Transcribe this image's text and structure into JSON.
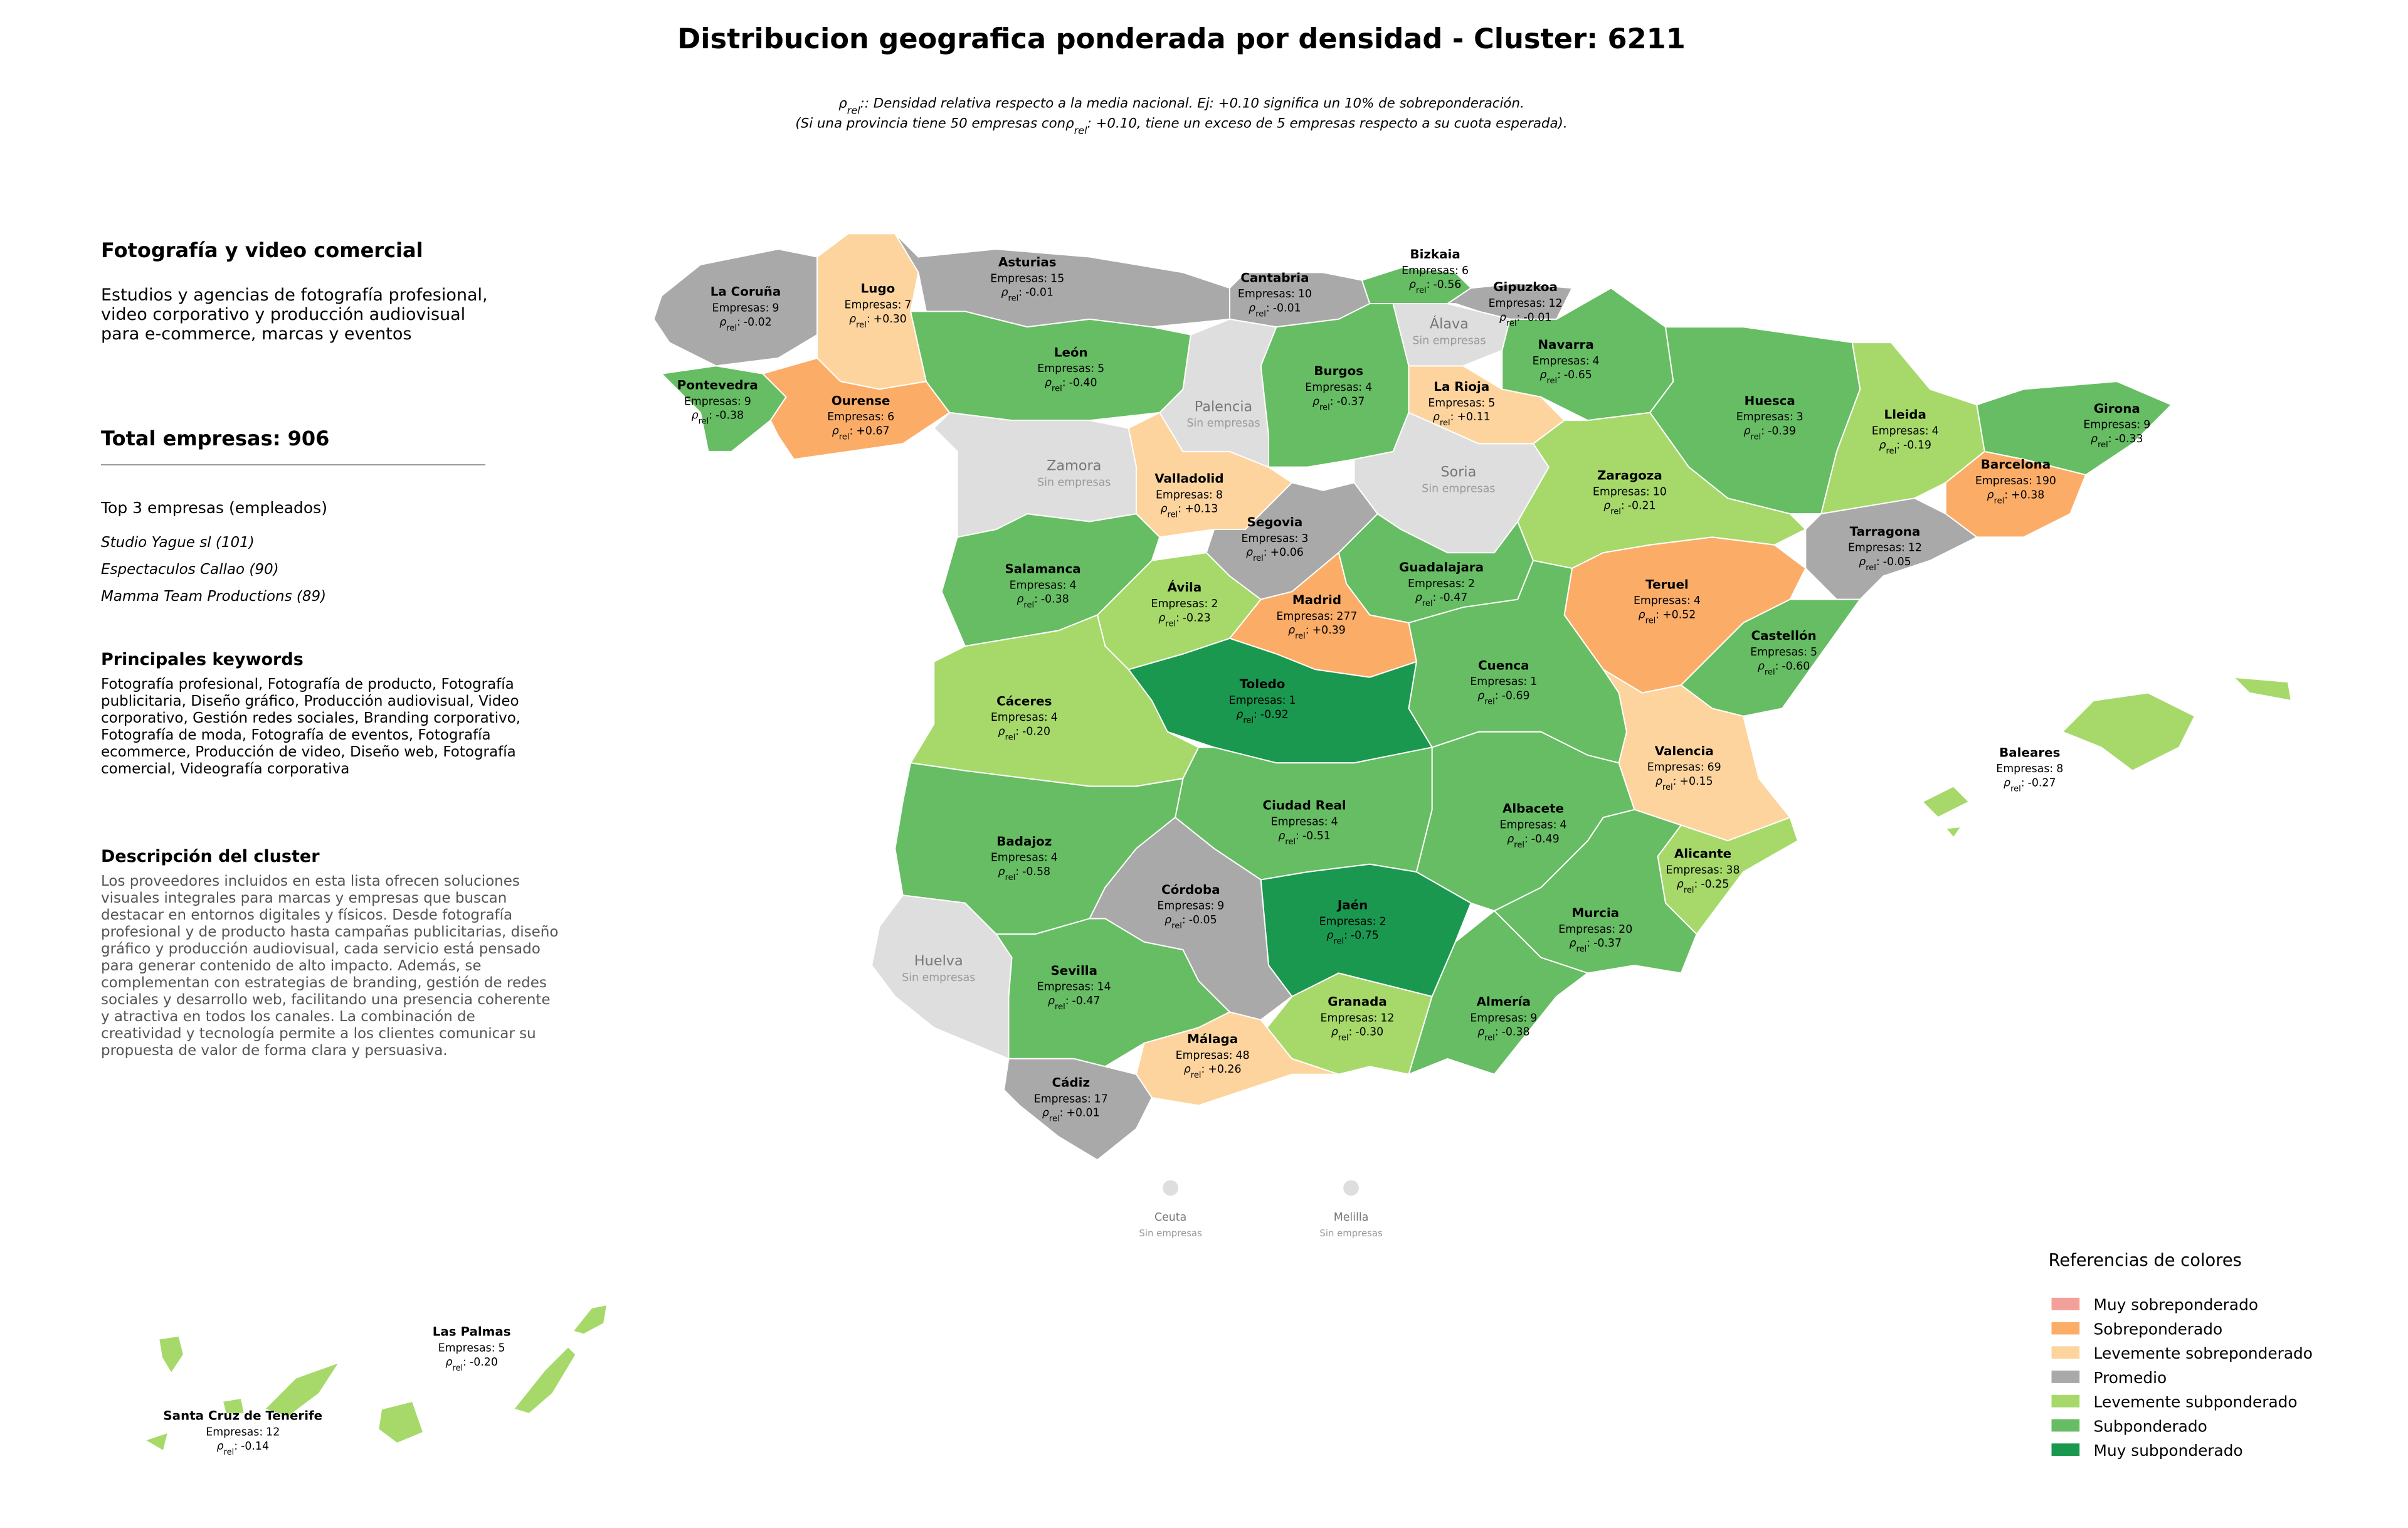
{
  "header": {
    "title": "Distribucion geografica ponderada por densidad - Cluster: 6211",
    "subtitle": {
      "line1": ": Densidad relativa respecto a la media nacional. Ej: +0.10 significa un 10% de sobreponderación.",
      "line2_start": "(Si una provincia tiene 50 empresas con",
      "line2_end": " +0.10, tiene un exceso de 5 empresas respecto a su cuota esperada)."
    }
  },
  "labels": {
    "companies": "Empresas:",
    "rho_symbol": "ρ",
    "rho_sub": "rel",
    "rho_sep": ":",
    "no_data": "Sin empresas"
  },
  "sidebar": {
    "title": "Fotografía y video comercial",
    "summary": "Estudios y agencias de fotografía profesional, video corporativo y producción audiovisual para e-commerce, marcas y eventos",
    "total_label": "Total empresas:",
    "total": 906,
    "top_title": "Top 3 empresas (empleados)",
    "top": [
      "Studio Yague sl (101)",
      "Espectaculos Callao (90)",
      "Mamma Team Productions (89)"
    ],
    "keywords_title": "Principales keywords",
    "keywords": "Fotografía profesional, Fotografía de producto, Fotografía publicitaria, Diseño gráfico, Producción audiovisual, Video corporativo, Gestión redes sociales, Branding corporativo, Fotografía de moda, Fotografía de eventos, Fotografía ecommerce, Producción de video, Diseño web, Fotografía comercial, Videografía corporativa",
    "description_title": "Descripción del cluster",
    "description": "Los proveedores incluidos en esta lista ofrecen soluciones visuales integrales para marcas y empresas que buscan destacar en entornos digitales y físicos. Desde fotografía profesional y de producto hasta campañas publicitarias, diseño gráfico y producción audiovisual, cada servicio está pensado para generar contenido de alto impacto. Además, se complementan con estrategias de branding, gestión de redes sociales y desarrollo web, facilitando una presencia coherente y atractiva en todos los canales. La combinación de creatividad y tecnología permite a los clientes comunicar su propuesta de valor de forma clara y persuasiva."
  },
  "map": {
    "no_data_color": "#dedede",
    "provinces": [
      {
        "name": "La Coruña",
        "companies": 9,
        "rho": "-0.02",
        "color": "#a9a9a9"
      },
      {
        "name": "Lugo",
        "companies": 7,
        "rho": "+0.30",
        "color": "#fdd49e"
      },
      {
        "name": "Asturias",
        "companies": 15,
        "rho": "-0.01",
        "color": "#a9a9a9"
      },
      {
        "name": "Cantabria",
        "companies": 10,
        "rho": "-0.01",
        "color": "#a9a9a9"
      },
      {
        "name": "Bizkaia",
        "companies": 6,
        "rho": "-0.56",
        "color": "#66bd63"
      },
      {
        "name": "Gipuzkoa",
        "companies": 12,
        "rho": "-0.01",
        "color": "#a9a9a9"
      },
      {
        "name": "Navarra",
        "companies": 4,
        "rho": "-0.65",
        "color": "#66bd63"
      },
      {
        "name": "Pontevedra",
        "companies": 9,
        "rho": "-0.38",
        "color": "#66bd63"
      },
      {
        "name": "Ourense",
        "companies": 6,
        "rho": "+0.67",
        "color": "#fbad68"
      },
      {
        "name": "León",
        "companies": 5,
        "rho": "-0.40",
        "color": "#66bd63"
      },
      {
        "name": "Burgos",
        "companies": 4,
        "rho": "-0.37",
        "color": "#66bd63"
      },
      {
        "name": "La Rioja",
        "companies": 5,
        "rho": "+0.11",
        "color": "#fdd49e"
      },
      {
        "name": "Valladolid",
        "companies": 8,
        "rho": "+0.13",
        "color": "#fdd49e"
      },
      {
        "name": "Segovia",
        "companies": 3,
        "rho": "+0.06",
        "color": "#a9a9a9"
      },
      {
        "name": "Huesca",
        "companies": 3,
        "rho": "-0.39",
        "color": "#66bd63"
      },
      {
        "name": "Zaragoza",
        "companies": 10,
        "rho": "-0.21",
        "color": "#a6d96a"
      },
      {
        "name": "Lleida",
        "companies": 4,
        "rho": "-0.19",
        "color": "#a6d96a"
      },
      {
        "name": "Girona",
        "companies": 9,
        "rho": "-0.33",
        "color": "#66bd63"
      },
      {
        "name": "Barcelona",
        "companies": 190,
        "rho": "+0.38",
        "color": "#fbad68"
      },
      {
        "name": "Tarragona",
        "companies": 12,
        "rho": "-0.05",
        "color": "#a9a9a9"
      },
      {
        "name": "Teruel",
        "companies": 4,
        "rho": "+0.52",
        "color": "#fbad68"
      },
      {
        "name": "Castellón",
        "companies": 5,
        "rho": "-0.60",
        "color": "#66bd63"
      },
      {
        "name": "Valencia",
        "companies": 69,
        "rho": "+0.15",
        "color": "#fdd49e"
      },
      {
        "name": "Alicante",
        "companies": 38,
        "rho": "-0.25",
        "color": "#a6d96a"
      },
      {
        "name": "Murcia",
        "companies": 20,
        "rho": "-0.37",
        "color": "#66bd63"
      },
      {
        "name": "Almería",
        "companies": 9,
        "rho": "-0.38",
        "color": "#66bd63"
      },
      {
        "name": "Granada",
        "companies": 12,
        "rho": "-0.30",
        "color": "#a6d96a"
      },
      {
        "name": "Jaén",
        "companies": 2,
        "rho": "-0.75",
        "color": "#1a9850"
      },
      {
        "name": "Albacete",
        "companies": 4,
        "rho": "-0.49",
        "color": "#66bd63"
      },
      {
        "name": "Cuenca",
        "companies": 1,
        "rho": "-0.69",
        "color": "#66bd63"
      },
      {
        "name": "Guadalajara",
        "companies": 2,
        "rho": "-0.47",
        "color": "#66bd63"
      },
      {
        "name": "Madrid",
        "companies": 277,
        "rho": "+0.39",
        "color": "#fbad68"
      },
      {
        "name": "Toledo",
        "companies": 1,
        "rho": "-0.92",
        "color": "#1a9850"
      },
      {
        "name": "Ávila",
        "companies": 2,
        "rho": "-0.23",
        "color": "#a6d96a"
      },
      {
        "name": "Salamanca",
        "companies": 4,
        "rho": "-0.38",
        "color": "#66bd63"
      },
      {
        "name": "Cáceres",
        "companies": 4,
        "rho": "-0.20",
        "color": "#a6d96a"
      },
      {
        "name": "Ciudad Real",
        "companies": 4,
        "rho": "-0.51",
        "color": "#66bd63"
      },
      {
        "name": "Badajoz",
        "companies": 4,
        "rho": "-0.58",
        "color": "#66bd63"
      },
      {
        "name": "Córdoba",
        "companies": 9,
        "rho": "-0.05",
        "color": "#a9a9a9"
      },
      {
        "name": "Sevilla",
        "companies": 14,
        "rho": "-0.47",
        "color": "#66bd63"
      },
      {
        "name": "Málaga",
        "companies": 48,
        "rho": "+0.26",
        "color": "#fdd49e"
      },
      {
        "name": "Cádiz",
        "companies": 17,
        "rho": "+0.01",
        "color": "#a9a9a9"
      },
      {
        "name": "Baleares",
        "companies": 8,
        "rho": "-0.27",
        "color": "#a6d96a"
      },
      {
        "name": "Las Palmas",
        "companies": 5,
        "rho": "-0.20",
        "color": "#a6d96a"
      },
      {
        "name": "Santa Cruz de Tenerife",
        "companies": 12,
        "rho": "-0.14",
        "color": "#a6d96a"
      }
    ],
    "provinces_without_companies": [
      "Álava",
      "Palencia",
      "Zamora",
      "Soria",
      "Huelva",
      "Ceuta",
      "Melilla"
    ]
  },
  "legend": {
    "title": "Referencias de colores",
    "items": [
      {
        "label": "Muy sobreponderado",
        "color": "#f4a09a"
      },
      {
        "label": "Sobreponderado",
        "color": "#fbad68"
      },
      {
        "label": "Levemente sobreponderado",
        "color": "#fdd49e"
      },
      {
        "label": "Promedio",
        "color": "#a9a9a9"
      },
      {
        "label": "Levemente subponderado",
        "color": "#a6d96a"
      },
      {
        "label": "Subponderado",
        "color": "#66bd63"
      },
      {
        "label": "Muy subponderado",
        "color": "#1a9850"
      }
    ]
  }
}
